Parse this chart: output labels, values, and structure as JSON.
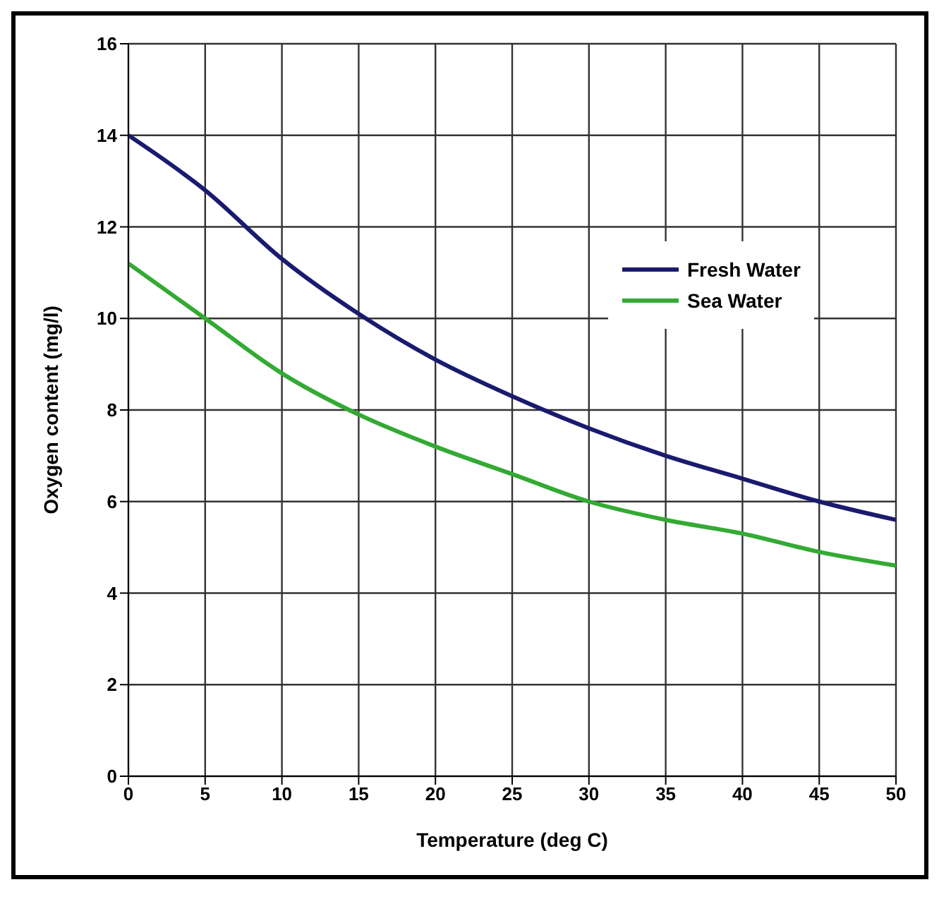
{
  "chart_data": {
    "type": "line",
    "xlabel": "Temperature (deg C)",
    "ylabel": "Oxygen content (mg/l)",
    "x": [
      0,
      5,
      10,
      15,
      20,
      25,
      30,
      35,
      40,
      45,
      50
    ],
    "series": [
      {
        "name": "Fresh Water",
        "color": "#1a1a6e",
        "values": [
          14,
          12.8,
          11.3,
          10.1,
          9.1,
          8.3,
          7.6,
          7.0,
          6.5,
          6.0,
          5.6
        ]
      },
      {
        "name": "Sea Water",
        "color": "#33aa33",
        "values": [
          11.2,
          10.0,
          8.8,
          7.9,
          7.2,
          6.6,
          6.0,
          5.6,
          5.3,
          4.9,
          4.6
        ]
      }
    ],
    "xlim": [
      0,
      50
    ],
    "xticks": [
      0,
      5,
      10,
      15,
      20,
      25,
      30,
      35,
      40,
      45,
      50
    ],
    "ylim": [
      0,
      16
    ],
    "yticks": [
      0,
      2,
      4,
      6,
      8,
      10,
      12,
      14,
      16
    ],
    "grid": true,
    "legend": "top right",
    "marker": "none",
    "line_style": "solid"
  }
}
